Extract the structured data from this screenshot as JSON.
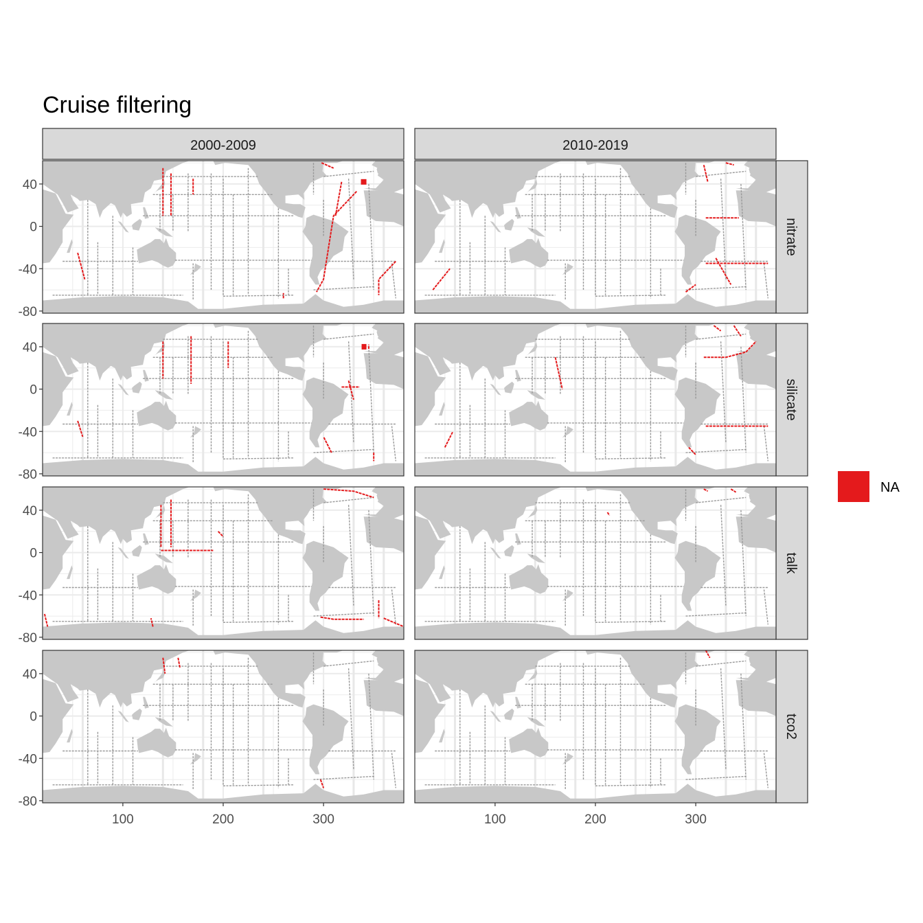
{
  "figure": {
    "title": "Cruise filtering",
    "col_labels": [
      "2000-2009",
      "2010-2019"
    ],
    "row_labels": [
      "nitrate",
      "silicate",
      "talk",
      "tco2"
    ],
    "x_ticks": [
      "100",
      "200",
      "300"
    ],
    "y_ticks": [
      "40",
      "0",
      "-40",
      "-80"
    ],
    "legend": {
      "label": "NA",
      "color": "#e41a1c"
    }
  },
  "colors": {
    "land": "#c8c8c8",
    "ocean": "#ffffff",
    "grid": "#ebebeb",
    "track": "#9a9a9a",
    "flagged": "#e41a1c",
    "strip": "#d9d9d9",
    "border": "#333333"
  },
  "chart_data": {
    "type": "map",
    "title": "Cruise filtering",
    "x_axis": {
      "ticks": [
        100,
        200,
        300
      ],
      "range": [
        20,
        380
      ]
    },
    "y_axis": {
      "ticks": [
        40,
        0,
        -40,
        -80
      ],
      "range": [
        -82,
        62
      ]
    },
    "facets": {
      "columns": [
        "2000-2009",
        "2010-2019"
      ],
      "rows": [
        "nitrate",
        "silicate",
        "talk",
        "tco2"
      ]
    },
    "legend": [
      {
        "label": "NA",
        "color": "#e41a1c",
        "position": "right"
      }
    ],
    "flagged_segments": {
      "nitrate|2000-2009": [
        [
          [
            333,
            33
          ],
          [
            310,
            10
          ],
          [
            305,
            -20
          ],
          [
            300,
            -50
          ],
          [
            293,
            -62
          ]
        ],
        [
          [
            318,
            42
          ],
          [
            312,
            10
          ]
        ],
        [
          [
            298,
            60
          ],
          [
            310,
            55
          ]
        ],
        [
          [
            372,
            -33
          ],
          [
            355,
            -50
          ],
          [
            355,
            -65
          ]
        ],
        [
          [
            140,
            55
          ],
          [
            140,
            10
          ]
        ],
        [
          [
            148,
            50
          ],
          [
            148,
            10
          ]
        ],
        [
          [
            170,
            45
          ],
          [
            170,
            30
          ]
        ],
        [
          [
            55,
            -25
          ],
          [
            62,
            -50
          ]
        ],
        [
          [
            260,
            -68
          ],
          [
            260,
            -63
          ]
        ]
      ],
      "nitrate|2010-2019": [
        [
          [
            310,
            8
          ],
          [
            343,
            8
          ]
        ],
        [
          [
            310,
            -35
          ],
          [
            372,
            -35
          ]
        ],
        [
          [
            308,
            58
          ],
          [
            312,
            42
          ]
        ],
        [
          [
            330,
            60
          ],
          [
            338,
            58
          ]
        ],
        [
          [
            38,
            -60
          ],
          [
            55,
            -40
          ]
        ],
        [
          [
            290,
            -62
          ],
          [
            300,
            -55
          ]
        ],
        [
          [
            320,
            -30
          ],
          [
            335,
            -55
          ]
        ]
      ],
      "silicate|2000-2009": [
        [
          [
            308,
            -60
          ],
          [
            300,
            -45
          ]
        ],
        [
          [
            345,
            38
          ],
          [
            345,
            42
          ]
        ],
        [
          [
            325,
            8
          ],
          [
            330,
            -10
          ]
        ],
        [
          [
            318,
            2
          ],
          [
            336,
            2
          ]
        ],
        [
          [
            140,
            45
          ],
          [
            140,
            10
          ]
        ],
        [
          [
            168,
            50
          ],
          [
            168,
            5
          ]
        ],
        [
          [
            205,
            45
          ],
          [
            205,
            20
          ]
        ],
        [
          [
            350,
            -60
          ],
          [
            350,
            -68
          ]
        ],
        [
          [
            55,
            -30
          ],
          [
            60,
            -45
          ]
        ]
      ],
      "silicate|2010-2019": [
        [
          [
            308,
            30
          ],
          [
            330,
            30
          ],
          [
            350,
            35
          ],
          [
            360,
            45
          ]
        ],
        [
          [
            310,
            -35
          ],
          [
            372,
            -35
          ]
        ],
        [
          [
            160,
            30
          ],
          [
            167,
            0
          ]
        ],
        [
          [
            318,
            60
          ],
          [
            325,
            55
          ]
        ],
        [
          [
            338,
            60
          ],
          [
            345,
            50
          ]
        ],
        [
          [
            50,
            -55
          ],
          [
            58,
            -40
          ]
        ],
        [
          [
            293,
            -55
          ],
          [
            300,
            -62
          ]
        ]
      ],
      "talk|2000-2009": [
        [
          [
            297,
            -61
          ],
          [
            310,
            -63
          ],
          [
            340,
            -63
          ]
        ],
        [
          [
            300,
            60
          ],
          [
            330,
            58
          ],
          [
            350,
            52
          ]
        ],
        [
          [
            355,
            -45
          ],
          [
            355,
            -62
          ]
        ],
        [
          [
            360,
            -62
          ],
          [
            380,
            -70
          ]
        ],
        [
          [
            138,
            45
          ],
          [
            138,
            5
          ]
        ],
        [
          [
            148,
            50
          ],
          [
            148,
            5
          ]
        ],
        [
          [
            138,
            2
          ],
          [
            190,
            2
          ]
        ],
        [
          [
            22,
            -58
          ],
          [
            25,
            -70
          ]
        ],
        [
          [
            130,
            -70
          ],
          [
            128,
            -62
          ]
        ],
        [
          [
            195,
            20
          ],
          [
            200,
            15
          ]
        ]
      ],
      "talk|2010-2019": [
        [
          [
            308,
            60
          ],
          [
            312,
            58
          ]
        ],
        [
          [
            335,
            60
          ],
          [
            340,
            57
          ]
        ],
        [
          [
            212,
            38
          ],
          [
            214,
            35
          ]
        ]
      ],
      "tco2|2000-2009": [
        [
          [
            140,
            55
          ],
          [
            142,
            40
          ]
        ],
        [
          [
            155,
            55
          ],
          [
            157,
            45
          ]
        ],
        [
          [
            297,
            -60
          ],
          [
            300,
            -68
          ]
        ]
      ],
      "tco2|2010-2019": [
        [
          [
            310,
            62
          ],
          [
            314,
            55
          ]
        ]
      ]
    }
  }
}
